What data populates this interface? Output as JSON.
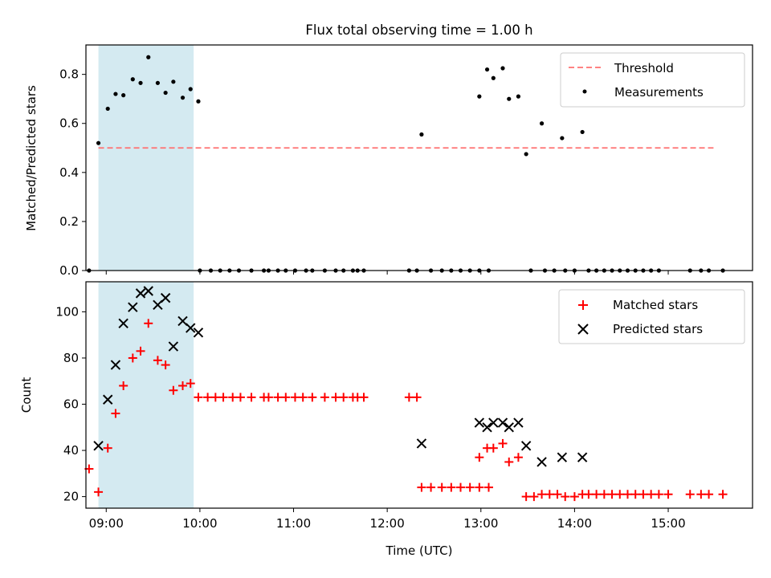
{
  "figure": {
    "title": "Flux total observing time = 1.00 h"
  },
  "chart_data": [
    {
      "type": "scatter",
      "ylabel": "Matched/Predicted stars",
      "xlabel": "",
      "xlim": [
        "08:47",
        "15:54"
      ],
      "ylim": [
        0,
        0.92
      ],
      "yticks": [
        0.0,
        0.2,
        0.4,
        0.6,
        0.8
      ],
      "ytick_labels": [
        "0.0",
        "0.2",
        "0.4",
        "0.6",
        "0.8"
      ],
      "shaded_span": {
        "from": "08:55",
        "to": "09:56",
        "color": "#d4eaf1"
      },
      "threshold": {
        "value": 0.5,
        "from": "08:55",
        "to": "15:29",
        "color": "#ff7070",
        "style": "dashed"
      },
      "legend": {
        "position": "top-right",
        "entries": [
          "Threshold",
          "Measurements"
        ]
      },
      "series": [
        {
          "name": "Measurements",
          "marker": "dot",
          "color": "#000000",
          "points": [
            [
              "08:49",
              0.0
            ],
            [
              "08:55",
              0.52
            ],
            [
              "09:01",
              0.66
            ],
            [
              "09:06",
              0.72
            ],
            [
              "09:11",
              0.715
            ],
            [
              "09:17",
              0.78
            ],
            [
              "09:22",
              0.765
            ],
            [
              "09:27",
              0.87
            ],
            [
              "09:33",
              0.765
            ],
            [
              "09:38",
              0.725
            ],
            [
              "09:43",
              0.77
            ],
            [
              "09:49",
              0.705
            ],
            [
              "09:54",
              0.74
            ],
            [
              "09:59",
              0.69
            ],
            [
              "10:00",
              0.0
            ],
            [
              "10:07",
              0.0
            ],
            [
              "10:13",
              0.0
            ],
            [
              "10:19",
              0.0
            ],
            [
              "10:25",
              0.0
            ],
            [
              "10:33",
              0.0
            ],
            [
              "10:41",
              0.0
            ],
            [
              "10:44",
              0.0
            ],
            [
              "10:50",
              0.0
            ],
            [
              "10:55",
              0.0
            ],
            [
              "11:01",
              0.0
            ],
            [
              "11:08",
              0.0
            ],
            [
              "11:12",
              0.0
            ],
            [
              "11:20",
              0.0
            ],
            [
              "11:27",
              0.0
            ],
            [
              "11:32",
              0.0
            ],
            [
              "11:38",
              0.0
            ],
            [
              "11:41",
              0.0
            ],
            [
              "11:45",
              0.0
            ],
            [
              "12:14",
              0.0
            ],
            [
              "12:19",
              0.0
            ],
            [
              "12:22",
              0.555
            ],
            [
              "12:28",
              0.0
            ],
            [
              "12:35",
              0.0
            ],
            [
              "12:41",
              0.0
            ],
            [
              "12:47",
              0.0
            ],
            [
              "12:53",
              0.0
            ],
            [
              "12:59",
              0.0
            ],
            [
              "13:05",
              0.0
            ],
            [
              "12:59",
              0.71
            ],
            [
              "13:04",
              0.82
            ],
            [
              "13:08",
              0.785
            ],
            [
              "13:14",
              0.825
            ],
            [
              "13:18",
              0.7
            ],
            [
              "13:24",
              0.71
            ],
            [
              "13:29",
              0.475
            ],
            [
              "13:32",
              0.0
            ],
            [
              "13:39",
              0.6
            ],
            [
              "13:41",
              0.0
            ],
            [
              "13:47",
              0.0
            ],
            [
              "13:52",
              0.54
            ],
            [
              "13:54",
              0.0
            ],
            [
              "14:00",
              0.0
            ],
            [
              "14:05",
              0.565
            ],
            [
              "14:09",
              0.0
            ],
            [
              "14:14",
              0.0
            ],
            [
              "14:19",
              0.0
            ],
            [
              "14:24",
              0.0
            ],
            [
              "14:29",
              0.0
            ],
            [
              "14:34",
              0.0
            ],
            [
              "14:39",
              0.0
            ],
            [
              "14:44",
              0.0
            ],
            [
              "14:49",
              0.0
            ],
            [
              "14:54",
              0.0
            ],
            [
              "15:14",
              0.0
            ],
            [
              "15:21",
              0.0
            ],
            [
              "15:26",
              0.0
            ],
            [
              "15:35",
              0.0
            ]
          ]
        }
      ]
    },
    {
      "type": "scatter",
      "xlabel": "Time (UTC)",
      "ylabel": "Count",
      "xlim": [
        "08:47",
        "15:54"
      ],
      "ylim": [
        15,
        113
      ],
      "yticks": [
        20,
        40,
        60,
        80,
        100
      ],
      "ytick_labels": [
        "20",
        "40",
        "60",
        "80",
        "100"
      ],
      "xticks": [
        "09:00",
        "10:00",
        "11:00",
        "12:00",
        "13:00",
        "14:00",
        "15:00"
      ],
      "xtick_labels": [
        "09:00",
        "10:00",
        "11:00",
        "12:00",
        "13:00",
        "14:00",
        "15:00"
      ],
      "shaded_span": {
        "from": "08:55",
        "to": "09:56",
        "color": "#d4eaf1"
      },
      "legend": {
        "position": "top-right",
        "entries": [
          "Matched stars",
          "Predicted stars"
        ]
      },
      "series": [
        {
          "name": "Matched stars",
          "marker": "plus",
          "color": "#ff0000",
          "points": [
            [
              "08:49",
              32
            ],
            [
              "08:55",
              22
            ],
            [
              "09:01",
              41
            ],
            [
              "09:06",
              56
            ],
            [
              "09:11",
              68
            ],
            [
              "09:17",
              80
            ],
            [
              "09:22",
              83
            ],
            [
              "09:27",
              95
            ],
            [
              "09:33",
              79
            ],
            [
              "09:38",
              77
            ],
            [
              "09:43",
              66
            ],
            [
              "09:49",
              68
            ],
            [
              "09:54",
              69
            ],
            [
              "09:59",
              63
            ],
            [
              "10:05",
              63
            ],
            [
              "10:10",
              63
            ],
            [
              "10:15",
              63
            ],
            [
              "10:21",
              63
            ],
            [
              "10:26",
              63
            ],
            [
              "10:33",
              63
            ],
            [
              "10:41",
              63
            ],
            [
              "10:44",
              63
            ],
            [
              "10:50",
              63
            ],
            [
              "10:55",
              63
            ],
            [
              "11:01",
              63
            ],
            [
              "11:06",
              63
            ],
            [
              "11:12",
              63
            ],
            [
              "11:20",
              63
            ],
            [
              "11:27",
              63
            ],
            [
              "11:32",
              63
            ],
            [
              "11:38",
              63
            ],
            [
              "11:41",
              63
            ],
            [
              "11:45",
              63
            ],
            [
              "12:14",
              63
            ],
            [
              "12:19",
              63
            ],
            [
              "12:22",
              24
            ],
            [
              "12:28",
              24
            ],
            [
              "12:35",
              24
            ],
            [
              "12:41",
              24
            ],
            [
              "12:47",
              24
            ],
            [
              "12:53",
              24
            ],
            [
              "12:59",
              24
            ],
            [
              "13:05",
              24
            ],
            [
              "12:59",
              37
            ],
            [
              "13:04",
              41
            ],
            [
              "13:08",
              41
            ],
            [
              "13:14",
              43
            ],
            [
              "13:18",
              35
            ],
            [
              "13:24",
              37
            ],
            [
              "13:29",
              20
            ],
            [
              "13:34",
              20
            ],
            [
              "13:39",
              21
            ],
            [
              "13:44",
              21
            ],
            [
              "13:49",
              21
            ],
            [
              "13:54",
              20
            ],
            [
              "14:00",
              20
            ],
            [
              "14:05",
              21
            ],
            [
              "14:09",
              21
            ],
            [
              "14:14",
              21
            ],
            [
              "14:19",
              21
            ],
            [
              "14:24",
              21
            ],
            [
              "14:29",
              21
            ],
            [
              "14:34",
              21
            ],
            [
              "14:39",
              21
            ],
            [
              "14:44",
              21
            ],
            [
              "14:49",
              21
            ],
            [
              "14:54",
              21
            ],
            [
              "15:00",
              21
            ],
            [
              "15:14",
              21
            ],
            [
              "15:21",
              21
            ],
            [
              "15:26",
              21
            ],
            [
              "15:35",
              21
            ]
          ]
        },
        {
          "name": "Predicted stars",
          "marker": "x",
          "color": "#000000",
          "points": [
            [
              "08:55",
              42
            ],
            [
              "09:01",
              62
            ],
            [
              "09:06",
              77
            ],
            [
              "09:11",
              95
            ],
            [
              "09:17",
              102
            ],
            [
              "09:22",
              108
            ],
            [
              "09:27",
              109
            ],
            [
              "09:33",
              103
            ],
            [
              "09:38",
              106
            ],
            [
              "09:43",
              85
            ],
            [
              "09:49",
              96
            ],
            [
              "09:54",
              93
            ],
            [
              "09:59",
              91
            ],
            [
              "12:22",
              43
            ],
            [
              "12:59",
              52
            ],
            [
              "13:04",
              50
            ],
            [
              "13:08",
              52
            ],
            [
              "13:14",
              52
            ],
            [
              "13:18",
              50
            ],
            [
              "13:24",
              52
            ],
            [
              "13:29",
              42
            ],
            [
              "13:39",
              35
            ],
            [
              "13:52",
              37
            ],
            [
              "14:05",
              37
            ]
          ]
        }
      ]
    }
  ]
}
